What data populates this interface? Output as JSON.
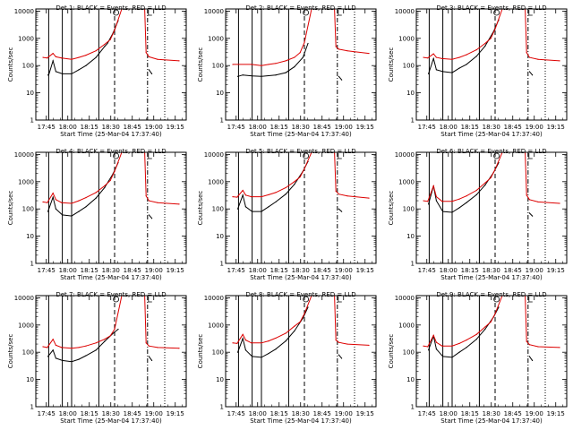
{
  "chart_data": {
    "type": "line",
    "layout": {
      "rows": 3,
      "cols": 3
    },
    "common": {
      "xlabel": "Start Time (25-Mar-04 17:37:40)",
      "ylabel": "Counts/sec",
      "xticks": [
        "17:45",
        "18:00",
        "18:15",
        "18:30",
        "18:45",
        "19:00",
        "19:15"
      ],
      "xtick_minutes": [
        7.33,
        22.33,
        37.33,
        52.33,
        67.33,
        82.33,
        97.33
      ],
      "xlim_minutes": [
        0,
        105
      ],
      "ylim": [
        1,
        12000
      ],
      "yscale": "log",
      "yticks": [
        "1",
        "10",
        "100",
        "1000",
        "10000"
      ],
      "series_names": [
        "Events",
        "LLD"
      ],
      "series_colors": {
        "Events": "#000000",
        "LLD": "#dd0000"
      },
      "vertical_markers": [
        {
          "minute": 9,
          "style": "solid"
        },
        {
          "minute": 18.5,
          "style": "solid"
        },
        {
          "minute": 25,
          "style": "solid"
        },
        {
          "minute": 44,
          "style": "solid"
        },
        {
          "minute": 55,
          "style": "dashed"
        },
        {
          "minute": 78,
          "style": "dashdot"
        },
        {
          "minute": 90,
          "style": "dotted"
        }
      ],
      "markers": {
        "S": 56,
        "E": 78
      }
    },
    "panels": [
      {
        "title": "Det  1: BLACK = Events, RED = LLD",
        "series": [
          {
            "name": "Events",
            "x": [
              5,
              8.5,
              9,
              12,
              14,
              18.5,
              25,
              30,
              35,
              42,
              48,
              50,
              54,
              57.5
            ],
            "y": [
              null,
              45,
              45,
              150,
              60,
              50,
              50,
              70,
              100,
              200,
              500,
              650,
              1600,
              4500
            ]
          },
          {
            "name": "LLD",
            "x": [
              5,
              8,
              12,
              14,
              18,
              25,
              30,
              35,
              42,
              48,
              52,
              55,
              60,
              64,
              70,
              76,
              77,
              79,
              85,
              100
            ],
            "y": [
              200,
              190,
              280,
              210,
              190,
              170,
              200,
              240,
              350,
              600,
              900,
              2000,
              12000,
              12000,
              12000,
              12000,
              300,
              210,
              170,
              150
            ]
          },
          {
            "name": "Events",
            "x": [
              79,
              81
            ],
            "y": [
              70,
              50
            ]
          }
        ]
      },
      {
        "title": "Det  2: BLACK = Events, RED = LLD",
        "series": [
          {
            "name": "Events",
            "x": [
              5,
              8.5,
              12,
              18.5,
              25,
              35,
              42,
              48,
              54,
              57.5
            ],
            "y": [
              null,
              40,
              45,
              42,
              40,
              45,
              55,
              90,
              200,
              650
            ]
          },
          {
            "name": "LLD",
            "x": [
              5,
              18,
              25,
              30,
              35,
              42,
              48,
              52,
              55,
              60,
              64,
              70,
              76,
              77,
              79,
              85,
              100
            ],
            "y": [
              110,
              110,
              100,
              110,
              120,
              150,
              200,
              300,
              700,
              12000,
              12000,
              12000,
              12000,
              500,
              400,
              350,
              280
            ]
          },
          {
            "name": "Events",
            "x": [
              79,
              81
            ],
            "y": [
              40,
              30
            ]
          }
        ]
      },
      {
        "title": "Det  3: BLACK = Events, RED = LLD",
        "series": [
          {
            "name": "Events",
            "x": [
              5,
              8.5,
              12,
              14,
              18.5,
              25,
              30,
              35,
              42,
              48,
              54,
              57.5
            ],
            "y": [
              null,
              50,
              180,
              70,
              60,
              55,
              80,
              110,
              220,
              520,
              1800,
              4800
            ]
          },
          {
            "name": "LLD",
            "x": [
              5,
              8,
              12,
              14,
              18,
              25,
              30,
              35,
              42,
              48,
              52,
              55,
              60,
              64,
              70,
              76,
              77,
              79,
              85,
              100
            ],
            "y": [
              200,
              190,
              270,
              200,
              180,
              170,
              200,
              250,
              380,
              650,
              1000,
              2200,
              12000,
              12000,
              12000,
              12000,
              300,
              200,
              170,
              150
            ]
          },
          {
            "name": "Events",
            "x": [
              79,
              81
            ],
            "y": [
              60,
              45
            ]
          }
        ]
      },
      {
        "title": "Det  4: BLACK = Events, RED = LLD",
        "series": [
          {
            "name": "Events",
            "x": [
              5,
              8.5,
              12,
              14,
              18.5,
              25,
              30,
              35,
              42,
              48,
              54,
              57.5
            ],
            "y": [
              null,
              80,
              270,
              100,
              60,
              55,
              80,
              120,
              250,
              600,
              2000,
              5000
            ]
          },
          {
            "name": "LLD",
            "x": [
              5,
              8,
              12,
              14,
              18,
              25,
              30,
              35,
              42,
              48,
              52,
              55,
              60,
              64,
              70,
              76,
              77,
              79,
              85,
              100
            ],
            "y": [
              180,
              170,
              380,
              220,
              170,
              160,
              200,
              260,
              400,
              700,
              1100,
              2400,
              12000,
              12000,
              12000,
              12000,
              300,
              200,
              170,
              150
            ]
          },
          {
            "name": "Events",
            "x": [
              79,
              81
            ],
            "y": [
              60,
              45
            ]
          }
        ]
      },
      {
        "title": "Det  5: BLACK = Events, RED = LLD",
        "series": [
          {
            "name": "Events",
            "x": [
              5,
              8.5,
              12,
              14,
              18.5,
              25,
              30,
              35,
              42,
              48,
              54,
              57.5
            ],
            "y": [
              null,
              100,
              320,
              120,
              80,
              80,
              120,
              180,
              350,
              800,
              2400,
              5500
            ]
          },
          {
            "name": "LLD",
            "x": [
              5,
              8,
              12,
              14,
              18,
              25,
              30,
              35,
              42,
              48,
              52,
              55,
              60,
              64,
              70,
              76,
              77,
              79,
              85,
              100
            ],
            "y": [
              280,
              270,
              480,
              320,
              280,
              280,
              330,
              400,
              600,
              1000,
              1500,
              3000,
              12000,
              12000,
              12000,
              12000,
              450,
              350,
              300,
              250
            ]
          },
          {
            "name": "Events",
            "x": [
              79,
              81
            ],
            "y": [
              100,
              80
            ]
          }
        ]
      },
      {
        "title": "Det  6: BLACK = Events, RED = LLD",
        "series": [
          {
            "name": "Events",
            "x": [
              5,
              8.5,
              12,
              14,
              18.5,
              25,
              30,
              35,
              42,
              48,
              54,
              57.5
            ],
            "y": [
              null,
              150,
              700,
              200,
              80,
              75,
              110,
              170,
              330,
              750,
              2200,
              5000
            ]
          },
          {
            "name": "LLD",
            "x": [
              5,
              8,
              12,
              14,
              18,
              25,
              30,
              35,
              42,
              48,
              52,
              55,
              60,
              64,
              70,
              76,
              77,
              79,
              85,
              100
            ],
            "y": [
              200,
              190,
              700,
              280,
              190,
              190,
              230,
              300,
              480,
              900,
              1400,
              2800,
              12000,
              12000,
              12000,
              12000,
              320,
              220,
              180,
              160
            ]
          },
          {
            "name": "Events",
            "x": [
              79,
              81
            ],
            "y": [
              70,
              55
            ]
          }
        ]
      },
      {
        "title": "Det  7: BLACK = Events, RED = LLD",
        "series": [
          {
            "name": "Events",
            "x": [
              5,
              8.5,
              12,
              14,
              18.5,
              25,
              30,
              35,
              42,
              48,
              54,
              57.5
            ],
            "y": [
              null,
              70,
              120,
              60,
              50,
              45,
              55,
              75,
              120,
              250,
              500,
              700
            ]
          },
          {
            "name": "LLD",
            "x": [
              5,
              8,
              12,
              14,
              18,
              25,
              30,
              35,
              42,
              48,
              52,
              55,
              60,
              64,
              70,
              76,
              77,
              79,
              85,
              100
            ],
            "y": [
              160,
              150,
              300,
              180,
              150,
              140,
              150,
              170,
              220,
              300,
              400,
              700,
              12000,
              12000,
              12000,
              12000,
              220,
              170,
              150,
              140
            ]
          },
          {
            "name": "Events",
            "x": [
              79,
              81
            ],
            "y": [
              70,
              50
            ]
          }
        ]
      },
      {
        "title": "Det  8: BLACK = Events, RED = LLD",
        "series": [
          {
            "name": "Events",
            "x": [
              5,
              8.5,
              12,
              14,
              18.5,
              25,
              30,
              35,
              42,
              48,
              54,
              57.5
            ],
            "y": [
              null,
              100,
              320,
              120,
              70,
              65,
              90,
              130,
              260,
              600,
              1800,
              4500
            ]
          },
          {
            "name": "LLD",
            "x": [
              5,
              8,
              12,
              14,
              18,
              25,
              30,
              35,
              42,
              48,
              52,
              55,
              60,
              64,
              70,
              76,
              77,
              79,
              85,
              100
            ],
            "y": [
              220,
              210,
              450,
              280,
              220,
              220,
              260,
              330,
              500,
              900,
              1300,
              2600,
              12000,
              12000,
              12000,
              12000,
              280,
              230,
              200,
              180
            ]
          },
          {
            "name": "Events",
            "x": [
              79,
              81
            ],
            "y": [
              80,
              60
            ]
          }
        ]
      },
      {
        "title": "Det  9: BLACK = Events, RED = LLD",
        "series": [
          {
            "name": "Events",
            "x": [
              5,
              8.5,
              12,
              14,
              18.5,
              25,
              30,
              35,
              42,
              48,
              54,
              57.5
            ],
            "y": [
              null,
              120,
              400,
              130,
              70,
              65,
              100,
              150,
              300,
              700,
              2000,
              4500
            ]
          },
          {
            "name": "LLD",
            "x": [
              5,
              8,
              12,
              14,
              18,
              25,
              30,
              35,
              42,
              48,
              52,
              55,
              60,
              64,
              70,
              76,
              77,
              79,
              85,
              100
            ],
            "y": [
              170,
              160,
              420,
              230,
              170,
              170,
              210,
              280,
              450,
              850,
              1300,
              2600,
              12000,
              12000,
              12000,
              12000,
              250,
              190,
              160,
              150
            ]
          },
          {
            "name": "Events",
            "x": [
              79,
              81
            ],
            "y": [
              70,
              50
            ]
          }
        ]
      }
    ]
  }
}
